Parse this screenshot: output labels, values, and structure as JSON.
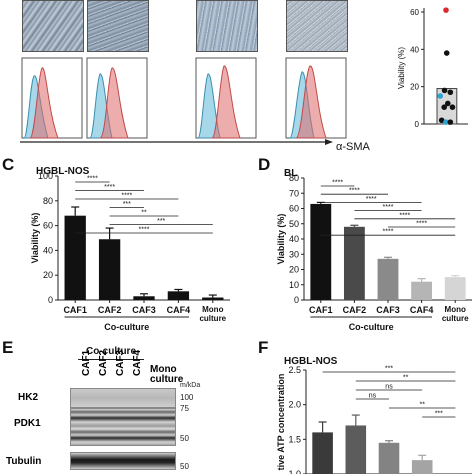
{
  "panel_labels": {
    "C": "C",
    "D": "D",
    "E": "E",
    "F": "F"
  },
  "colors": {
    "c_bar": "#111111",
    "d_bars": [
      "#111111",
      "#4a4a4a",
      "#8a8a8a",
      "#b5b5b5",
      "#d5d5d5"
    ],
    "f_bars": [
      "#3a3a3a",
      "#5c5c5c",
      "#838383",
      "#a4a4a4",
      "#dedede"
    ],
    "hist_blue": "#5cb8d8",
    "hist_red": "#e06a6a",
    "dot_red": "#d92b2b",
    "dot_blue": "#2fa3d3"
  },
  "top_flow": {
    "xlabel": "α-SMA"
  },
  "chart_data": [
    {
      "type": "scatter",
      "panel": "top-right",
      "ylabel": "Viability (%)",
      "ylim": [
        0,
        60
      ],
      "yticks": [
        "0",
        "20",
        "40",
        "60"
      ],
      "mean_bar": 19,
      "points": [
        {
          "x": 0.5,
          "y": 61,
          "color": "red"
        },
        {
          "x": 0.52,
          "y": 38,
          "color": "black"
        },
        {
          "x": 0.46,
          "y": 18,
          "color": "black"
        },
        {
          "x": 0.62,
          "y": 17,
          "color": "black"
        },
        {
          "x": 0.34,
          "y": 15,
          "color": "blue"
        },
        {
          "x": 0.55,
          "y": 11,
          "color": "black"
        },
        {
          "x": 0.45,
          "y": 9,
          "color": "black"
        },
        {
          "x": 0.68,
          "y": 9,
          "color": "black"
        },
        {
          "x": 0.38,
          "y": 2,
          "color": "black"
        },
        {
          "x": 0.5,
          "y": 1,
          "color": "blue"
        },
        {
          "x": 0.62,
          "y": 1,
          "color": "black"
        }
      ]
    },
    {
      "type": "bar",
      "panel": "C",
      "title": "HGBL-NOS",
      "ylabel": "Viability (%)",
      "xlabel": "Co-culture",
      "ylim": [
        0,
        100
      ],
      "yticks": [
        "0",
        "20",
        "40",
        "60",
        "80",
        "100"
      ],
      "categories": [
        "CAF1",
        "CAF2",
        "CAF3",
        "CAF4",
        "Mono culture"
      ],
      "values": [
        68,
        49,
        3,
        7,
        2
      ],
      "errors": [
        7,
        9,
        2,
        1.5,
        2
      ],
      "sig": [
        {
          "from": 0,
          "to": 1,
          "label": "****"
        },
        {
          "from": 0,
          "to": 2,
          "label": "****"
        },
        {
          "from": 0,
          "to": 3,
          "label": "****"
        },
        {
          "from": 1,
          "to": 2,
          "label": "***"
        },
        {
          "from": 1,
          "to": 3,
          "label": "**"
        },
        {
          "from": 1,
          "to": 4,
          "label": "***"
        },
        {
          "from": 0,
          "to": 4,
          "label": "****"
        }
      ]
    },
    {
      "type": "bar",
      "panel": "D",
      "title": "BL",
      "ylabel": "Viability (%)",
      "xlabel": "Co-culture",
      "ylim": [
        0,
        80
      ],
      "yticks": [
        "0",
        "10",
        "20",
        "30",
        "40",
        "50",
        "60",
        "70",
        "80"
      ],
      "categories": [
        "CAF1",
        "CAF2",
        "CAF3",
        "CAF4",
        "Mono culture"
      ],
      "values": [
        63,
        48,
        27,
        12,
        15
      ],
      "errors": [
        1,
        1,
        1,
        2,
        1
      ],
      "sig": [
        {
          "from": 0,
          "to": 1,
          "label": "****"
        },
        {
          "from": 0,
          "to": 2,
          "label": "****"
        },
        {
          "from": 0,
          "to": 3,
          "label": "****"
        },
        {
          "from": 1,
          "to": 3,
          "label": "****"
        },
        {
          "from": 1,
          "to": 4,
          "label": "****"
        },
        {
          "from": 2,
          "to": 4,
          "label": "****"
        },
        {
          "from": 0,
          "to": 4,
          "label": "****"
        }
      ]
    },
    {
      "type": "bar",
      "panel": "F",
      "title": "HGBL-NOS",
      "ylabel": "tive ATP concentration",
      "ylim": [
        1.0,
        2.5
      ],
      "yticks": [
        "1.0",
        "1.5",
        "2.0",
        "2.5"
      ],
      "values": [
        1.6,
        1.7,
        1.45,
        1.2,
        1.0
      ],
      "errors": [
        0.15,
        0.15,
        0.03,
        0.07,
        0
      ],
      "sig": [
        {
          "from": 0,
          "to": 4,
          "label": "***"
        },
        {
          "from": 1,
          "to": 4,
          "label": "**"
        },
        {
          "from": 1,
          "to": 3,
          "label": "ns"
        },
        {
          "from": 1,
          "to": 2,
          "label": "ns"
        },
        {
          "from": 2,
          "to": 4,
          "label": "**"
        },
        {
          "from": 3,
          "to": 4,
          "label": "***"
        }
      ]
    }
  ],
  "blot": {
    "header_group": "Co-culture",
    "lanes": [
      "CAF1",
      "CAF2",
      "CAF3",
      "CAF4"
    ],
    "mono_label": "Mono culture",
    "kda_unit": "m/kDa",
    "rows": [
      {
        "name": "HK2",
        "markers": [
          "100"
        ]
      },
      {
        "name": "PDK1",
        "markers": [
          "75",
          "50"
        ]
      },
      {
        "name": "Tubulin",
        "markers": [
          "50"
        ]
      }
    ]
  }
}
